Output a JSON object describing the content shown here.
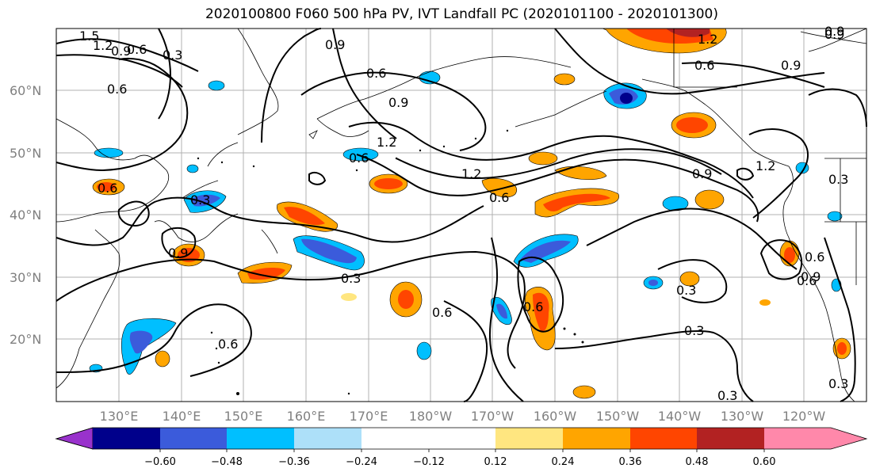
{
  "title": "2020100800 F060 500 hPa PV, IVT Landfall PC (2020101100 - 2020101300)",
  "lat_labels": [
    "20°N",
    "30°N",
    "40°N",
    "50°N",
    "60°N"
  ],
  "lon_labels": [
    "130°E",
    "140°E",
    "150°E",
    "160°E",
    "170°E",
    "180°W",
    "170°W",
    "160°W",
    "150°W",
    "140°W",
    "130°W",
    "120°W"
  ],
  "colorbar": {
    "colors": [
      "#9932CC",
      "#00008B",
      "#3B5BDB",
      "#00BFFF",
      "#ADE0F9",
      "#FFFFFF",
      "#FFFFFF",
      "#FFE680",
      "#FFA500",
      "#FF4500",
      "#B22222",
      "#FF88AA"
    ],
    "ticks": [
      "−0.60",
      "−0.48",
      "−0.36",
      "−0.24",
      "−0.12",
      "0.12",
      "0.24",
      "0.36",
      "0.48",
      "0.60"
    ]
  },
  "contour_labels": [
    "1.5",
    "1.2",
    "0.9",
    "0.6",
    "0.3",
    "0.6",
    "0.9",
    "0.6",
    "0.9",
    "0.6",
    "1.2",
    "1.2",
    "0.6",
    "0.9",
    "1.2",
    "0.6",
    "0.9",
    "1.2",
    "0.9",
    "0.3",
    "0.9",
    "0.3",
    "0.6",
    "0.6",
    "0.6",
    "0.3",
    "0.6",
    "0.3",
    "0.3",
    "0.6",
    "0.3",
    "0.9",
    "0.6",
    "0.9",
    "0.3"
  ],
  "icons": {
    "map": "map-icon"
  }
}
